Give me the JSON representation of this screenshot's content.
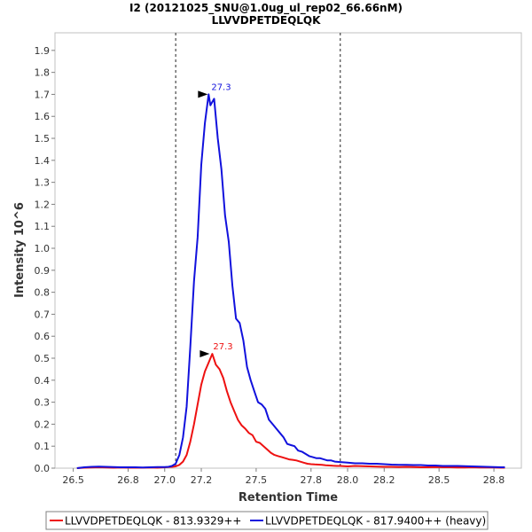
{
  "chart_data": {
    "type": "line",
    "title": "I2 (20121025_SNU@1.0ug_ul_rep02_66.66nM)",
    "subtitle": "LLVVDPETDEQLQK",
    "xlabel": "Retention Time",
    "ylabel": "Intensity 10^6",
    "xlim": [
      26.4,
      28.95
    ],
    "ylim": [
      0,
      1.98
    ],
    "xticks": [
      26.5,
      26.8,
      27.0,
      27.2,
      27.5,
      27.8,
      28.0,
      28.2,
      28.5,
      28.8
    ],
    "xtick_labels": [
      "26.5",
      "26.8",
      "27.0",
      "27.2",
      "27.5",
      "27.8",
      "28.0",
      "28.2",
      "28.5",
      "28.8"
    ],
    "yticks": [
      0.0,
      0.1,
      0.2,
      0.3,
      0.4,
      0.5,
      0.6,
      0.7,
      0.8,
      0.9,
      1.0,
      1.1,
      1.2,
      1.3,
      1.4,
      1.5,
      1.6,
      1.7,
      1.8,
      1.9
    ],
    "ytick_labels": [
      "0.0",
      "0.1",
      "0.2",
      "0.3",
      "0.4",
      "0.5",
      "0.6",
      "0.7",
      "0.8",
      "0.9",
      "1.0",
      "1.1",
      "1.2",
      "1.3",
      "1.4",
      "1.5",
      "1.6",
      "1.7",
      "1.8",
      "1.9"
    ],
    "integration_bounds": [
      27.06,
      27.96
    ],
    "legend_position": "bottom",
    "series": [
      {
        "name": "LLVVDPETDEQLQK - 813.9329++",
        "color": "#ee1111",
        "peak_label": "27.3",
        "peak": [
          27.26,
          0.52
        ],
        "x": [
          26.52,
          26.56,
          26.6,
          26.64,
          26.68,
          26.72,
          26.76,
          26.8,
          26.84,
          26.88,
          26.92,
          26.96,
          27.0,
          27.04,
          27.06,
          27.08,
          27.1,
          27.12,
          27.14,
          27.16,
          27.18,
          27.2,
          27.22,
          27.24,
          27.26,
          27.28,
          27.3,
          27.32,
          27.34,
          27.36,
          27.38,
          27.4,
          27.42,
          27.44,
          27.46,
          27.48,
          27.5,
          27.52,
          27.54,
          27.56,
          27.58,
          27.6,
          27.62,
          27.64,
          27.66,
          27.68,
          27.7,
          27.72,
          27.74,
          27.76,
          27.78,
          27.8,
          27.82,
          27.84,
          27.86,
          27.88,
          27.9,
          27.92,
          27.94,
          27.96,
          28.0,
          28.04,
          28.08,
          28.12,
          28.16,
          28.2,
          28.24,
          28.28,
          28.32,
          28.36,
          28.4,
          28.44,
          28.48,
          28.52,
          28.56,
          28.6,
          28.64,
          28.68,
          28.72,
          28.76,
          28.8,
          28.84,
          28.86
        ],
        "y": [
          0.0,
          0.002,
          0.003,
          0.004,
          0.003,
          0.002,
          0.003,
          0.002,
          0.002,
          0.002,
          0.003,
          0.002,
          0.004,
          0.006,
          0.008,
          0.015,
          0.03,
          0.06,
          0.12,
          0.2,
          0.29,
          0.38,
          0.44,
          0.48,
          0.52,
          0.47,
          0.45,
          0.41,
          0.35,
          0.3,
          0.26,
          0.22,
          0.195,
          0.18,
          0.16,
          0.15,
          0.12,
          0.115,
          0.1,
          0.085,
          0.07,
          0.06,
          0.055,
          0.05,
          0.045,
          0.04,
          0.038,
          0.035,
          0.03,
          0.025,
          0.02,
          0.018,
          0.017,
          0.016,
          0.015,
          0.013,
          0.012,
          0.011,
          0.01,
          0.01,
          0.008,
          0.01,
          0.009,
          0.008,
          0.007,
          0.006,
          0.006,
          0.005,
          0.006,
          0.005,
          0.004,
          0.004,
          0.005,
          0.004,
          0.004,
          0.003,
          0.003,
          0.004,
          0.003,
          0.003,
          0.003,
          0.002,
          0.002
        ]
      },
      {
        "name": "LLVVDPETDEQLQK - 817.9400++ (heavy)",
        "color": "#1111dd",
        "peak_label": "27.3",
        "peak": [
          27.25,
          1.7
        ],
        "x": [
          26.52,
          26.56,
          26.6,
          26.64,
          26.68,
          26.72,
          26.76,
          26.8,
          26.84,
          26.88,
          26.92,
          26.96,
          27.0,
          27.02,
          27.04,
          27.06,
          27.08,
          27.1,
          27.12,
          27.14,
          27.16,
          27.18,
          27.2,
          27.22,
          27.24,
          27.25,
          27.27,
          27.29,
          27.31,
          27.33,
          27.35,
          27.37,
          27.39,
          27.41,
          27.43,
          27.45,
          27.47,
          27.49,
          27.51,
          27.53,
          27.55,
          27.57,
          27.59,
          27.61,
          27.63,
          27.65,
          27.67,
          27.69,
          27.71,
          27.73,
          27.75,
          27.77,
          27.79,
          27.81,
          27.83,
          27.85,
          27.87,
          27.89,
          27.91,
          27.93,
          27.96,
          28.0,
          28.04,
          28.08,
          28.12,
          28.16,
          28.2,
          28.24,
          28.28,
          28.32,
          28.36,
          28.4,
          28.44,
          28.48,
          28.52,
          28.56,
          28.6,
          28.64,
          28.68,
          28.72,
          28.76,
          28.8,
          28.84,
          28.86
        ],
        "y": [
          0.0,
          0.004,
          0.006,
          0.007,
          0.006,
          0.005,
          0.004,
          0.004,
          0.004,
          0.003,
          0.004,
          0.005,
          0.005,
          0.006,
          0.01,
          0.02,
          0.06,
          0.14,
          0.28,
          0.55,
          0.85,
          1.05,
          1.38,
          1.57,
          1.7,
          1.65,
          1.68,
          1.5,
          1.36,
          1.15,
          1.03,
          0.83,
          0.68,
          0.66,
          0.58,
          0.46,
          0.4,
          0.35,
          0.3,
          0.29,
          0.27,
          0.22,
          0.2,
          0.18,
          0.16,
          0.14,
          0.11,
          0.105,
          0.1,
          0.08,
          0.075,
          0.065,
          0.055,
          0.05,
          0.045,
          0.045,
          0.04,
          0.035,
          0.035,
          0.03,
          0.028,
          0.025,
          0.022,
          0.022,
          0.02,
          0.02,
          0.018,
          0.016,
          0.015,
          0.015,
          0.014,
          0.014,
          0.012,
          0.012,
          0.01,
          0.01,
          0.01,
          0.009,
          0.008,
          0.007,
          0.006,
          0.005,
          0.004,
          0.004
        ]
      }
    ]
  }
}
